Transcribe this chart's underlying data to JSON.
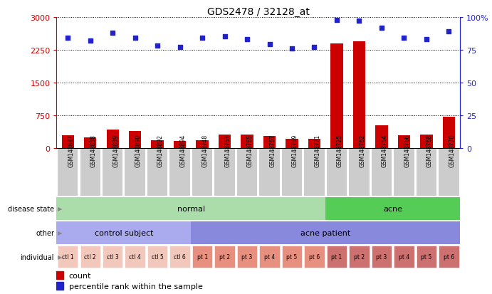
{
  "title": "GDS2478 / 32128_at",
  "samples": [
    "GSM148887",
    "GSM148888",
    "GSM148889",
    "GSM148890",
    "GSM148892",
    "GSM148894",
    "GSM148748",
    "GSM148763",
    "GSM148765",
    "GSM148767",
    "GSM148769",
    "GSM148771",
    "GSM148725",
    "GSM148762",
    "GSM148764",
    "GSM148766",
    "GSM148768",
    "GSM148770"
  ],
  "counts": [
    280,
    240,
    420,
    390,
    175,
    150,
    175,
    310,
    310,
    275,
    200,
    210,
    2400,
    2450,
    510,
    295,
    310,
    710
  ],
  "percentile_ranks": [
    84,
    82,
    88,
    84,
    78,
    77,
    84,
    85,
    83,
    79,
    76,
    77,
    98,
    97,
    92,
    84,
    83,
    89
  ],
  "bar_color": "#cc0000",
  "dot_color": "#2222cc",
  "ylim_left": [
    0,
    3000
  ],
  "yticks_left": [
    0,
    750,
    1500,
    2250,
    3000
  ],
  "ylim_right": [
    0,
    100
  ],
  "yticks_right": [
    0,
    25,
    50,
    75,
    100
  ],
  "disease_state_groups": [
    {
      "label": "normal",
      "start": 0,
      "end": 12,
      "color": "#aaddaa"
    },
    {
      "label": "acne",
      "start": 12,
      "end": 18,
      "color": "#55cc55"
    }
  ],
  "other_groups": [
    {
      "label": "control subject",
      "start": 0,
      "end": 6,
      "color": "#aaaaee"
    },
    {
      "label": "acne patient",
      "start": 6,
      "end": 18,
      "color": "#8888dd"
    }
  ],
  "individual_labels": [
    "ctl 1",
    "ctl 2",
    "ctl 3",
    "ctl 4",
    "ctl 5",
    "ctl 6",
    "pt 1",
    "pt 2",
    "pt 3",
    "pt 4",
    "pt 5",
    "pt 6",
    "pt 1",
    "pt 2",
    "pt 3",
    "pt 4",
    "pt 5",
    "pt 6"
  ],
  "individual_colors_1": "#f2c8bc",
  "individual_colors_2": "#e89080",
  "individual_colors_3": "#cc7070",
  "individual_split": [
    6,
    12
  ],
  "row_labels": [
    "disease state",
    "other",
    "individual"
  ],
  "legend_count_color": "#cc0000",
  "legend_dot_color": "#2222cc",
  "legend_count_text": "count",
  "legend_dot_text": "percentile rank within the sample",
  "xtick_bg": "#cccccc"
}
